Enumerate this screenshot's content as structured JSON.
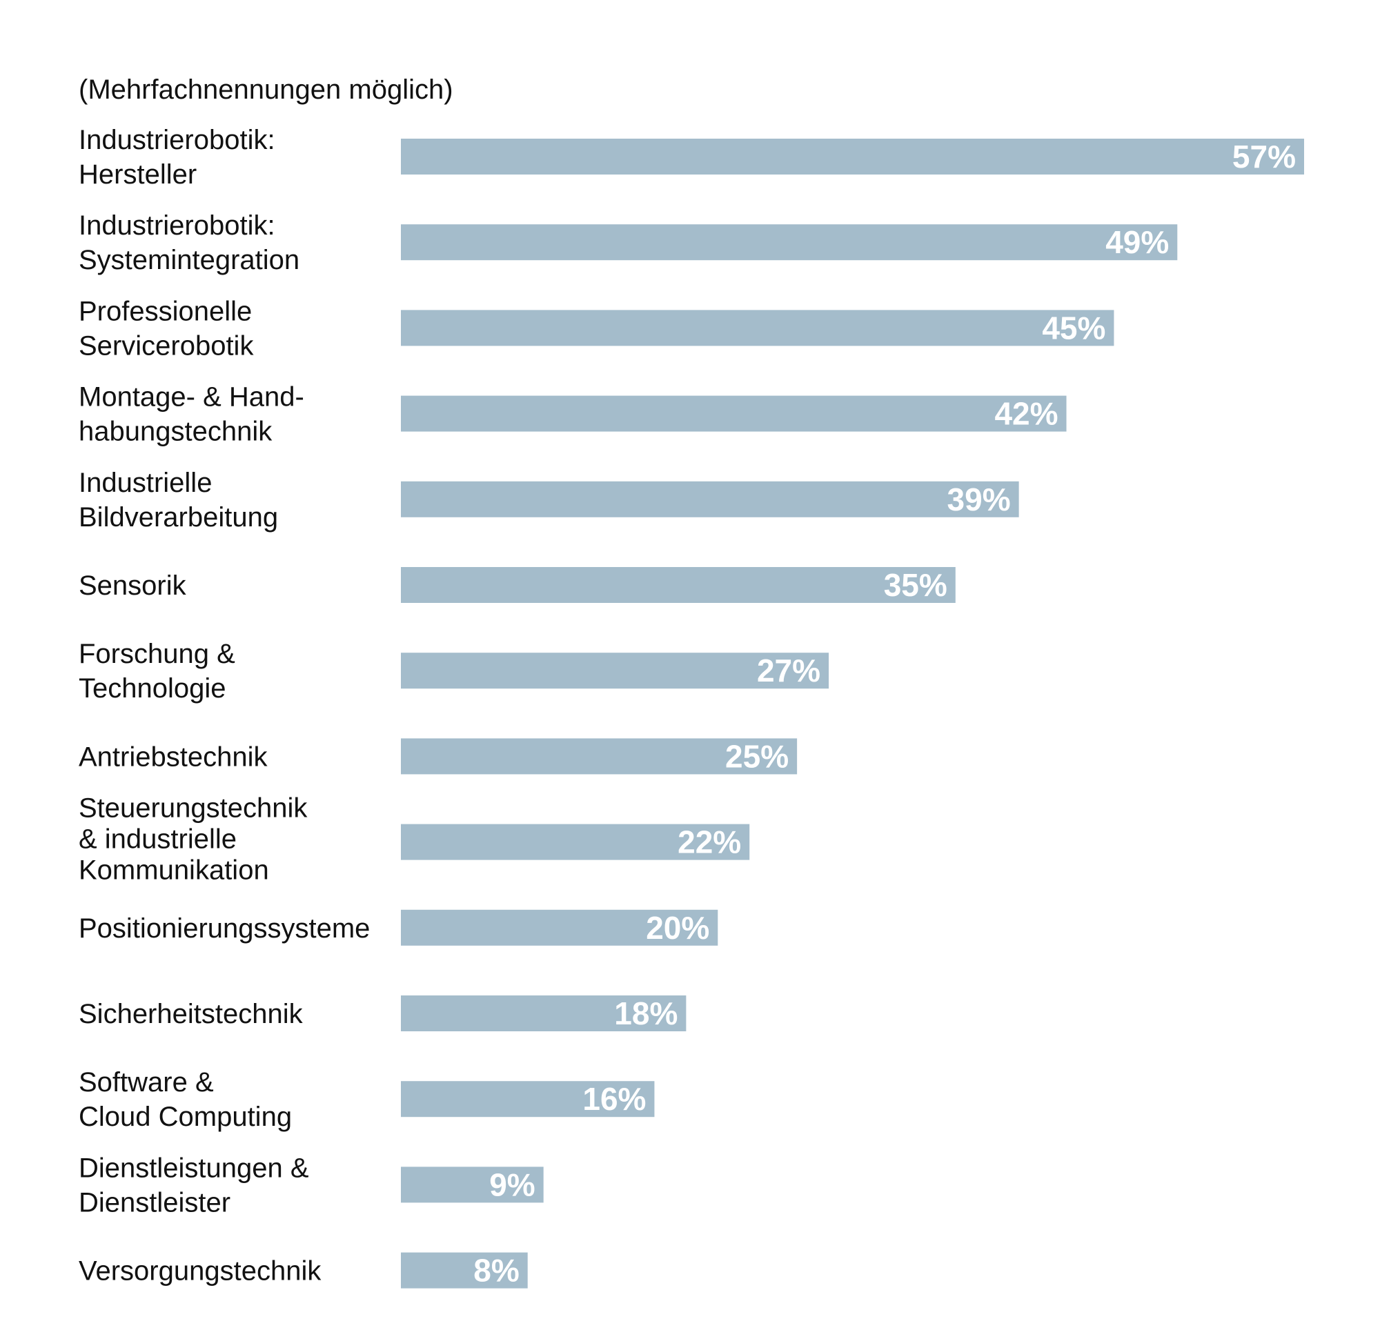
{
  "chart_data": {
    "type": "bar",
    "orientation": "horizontal",
    "note": "(Mehrfachnennungen möglich)",
    "categories": [
      [
        "Industrierobotik:",
        "Hersteller"
      ],
      [
        "Industrierobotik:",
        "Systemintegration"
      ],
      [
        "Professionelle",
        "Servicerobotik"
      ],
      [
        "Montage- & Hand-",
        "habungstechnik"
      ],
      [
        "Industrielle",
        "Bildverarbeitung"
      ],
      [
        "Sensorik"
      ],
      [
        "Forschung &",
        "Technologie"
      ],
      [
        "Antriebstechnik"
      ],
      [
        "Steuerungstechnik",
        "& industrielle",
        "Kommunikation"
      ],
      [
        "Positionierungssysteme"
      ],
      [
        "Sicherheitstechnik"
      ],
      [
        "Software &",
        "Cloud Computing"
      ],
      [
        "Dienstleistungen &",
        "Dienstleister"
      ],
      [
        "Versorgungstechnik"
      ]
    ],
    "values": [
      57,
      49,
      45,
      42,
      39,
      35,
      27,
      25,
      22,
      20,
      18,
      16,
      9,
      8
    ],
    "value_labels": [
      "57%",
      "49%",
      "45%",
      "42%",
      "39%",
      "35%",
      "27%",
      "25%",
      "22%",
      "20%",
      "18%",
      "16%",
      "9%",
      "8%"
    ],
    "unit": "%",
    "xlim": [
      0,
      57
    ],
    "bar_color": "#a4bccb",
    "value_label_color": "#ffffff",
    "text_color": "#111111",
    "grid": false,
    "legend": "none"
  }
}
